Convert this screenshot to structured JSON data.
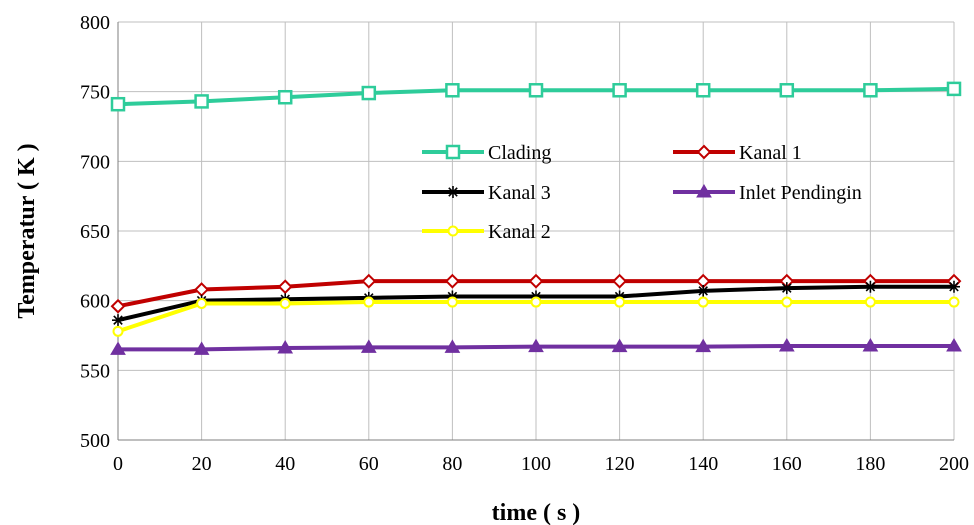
{
  "chart_data": {
    "type": "line",
    "title": "",
    "xlabel": "time ( s )",
    "ylabel": "Temperatur ( K )",
    "xlim": [
      0,
      200
    ],
    "ylim": [
      500,
      800
    ],
    "x_ticks": [
      0,
      20,
      40,
      60,
      80,
      100,
      120,
      140,
      160,
      180,
      200
    ],
    "y_ticks": [
      500,
      550,
      600,
      650,
      700,
      750,
      800
    ],
    "grid": true,
    "legend_position": "inside-center-right",
    "series": [
      {
        "name": "Clading",
        "color": "#2ecc9a",
        "marker": "square",
        "x": [
          0,
          20,
          40,
          60,
          80,
          100,
          120,
          140,
          160,
          180,
          200
        ],
        "y": [
          741,
          743,
          746,
          749,
          751,
          751,
          751,
          751,
          751,
          751,
          752
        ]
      },
      {
        "name": "Kanal 1",
        "color": "#c00000",
        "marker": "diamond",
        "x": [
          0,
          20,
          40,
          60,
          80,
          100,
          120,
          140,
          160,
          180,
          200
        ],
        "y": [
          596,
          608,
          610,
          614,
          614,
          614,
          614,
          614,
          614,
          614,
          614
        ]
      },
      {
        "name": "Kanal 3",
        "color": "#000000",
        "marker": "asterisk",
        "x": [
          0,
          20,
          40,
          60,
          80,
          100,
          120,
          140,
          160,
          180,
          200
        ],
        "y": [
          586,
          600,
          601,
          602,
          603,
          603,
          603,
          607,
          609,
          610,
          610
        ]
      },
      {
        "name": "Inlet Pendingin",
        "color": "#7030a0",
        "marker": "triangle",
        "x": [
          0,
          20,
          40,
          60,
          80,
          100,
          120,
          140,
          160,
          180,
          200
        ],
        "y": [
          565,
          565,
          566,
          566.5,
          566.5,
          567,
          567,
          567,
          567.5,
          567.5,
          567.5
        ]
      },
      {
        "name": "Kanal 2",
        "color": "#ffff00",
        "marker": "circle",
        "x": [
          0,
          20,
          40,
          60,
          80,
          100,
          120,
          140,
          160,
          180,
          200
        ],
        "y": [
          578,
          598,
          598,
          599,
          599,
          599,
          599,
          599,
          599,
          599,
          599
        ]
      }
    ]
  }
}
